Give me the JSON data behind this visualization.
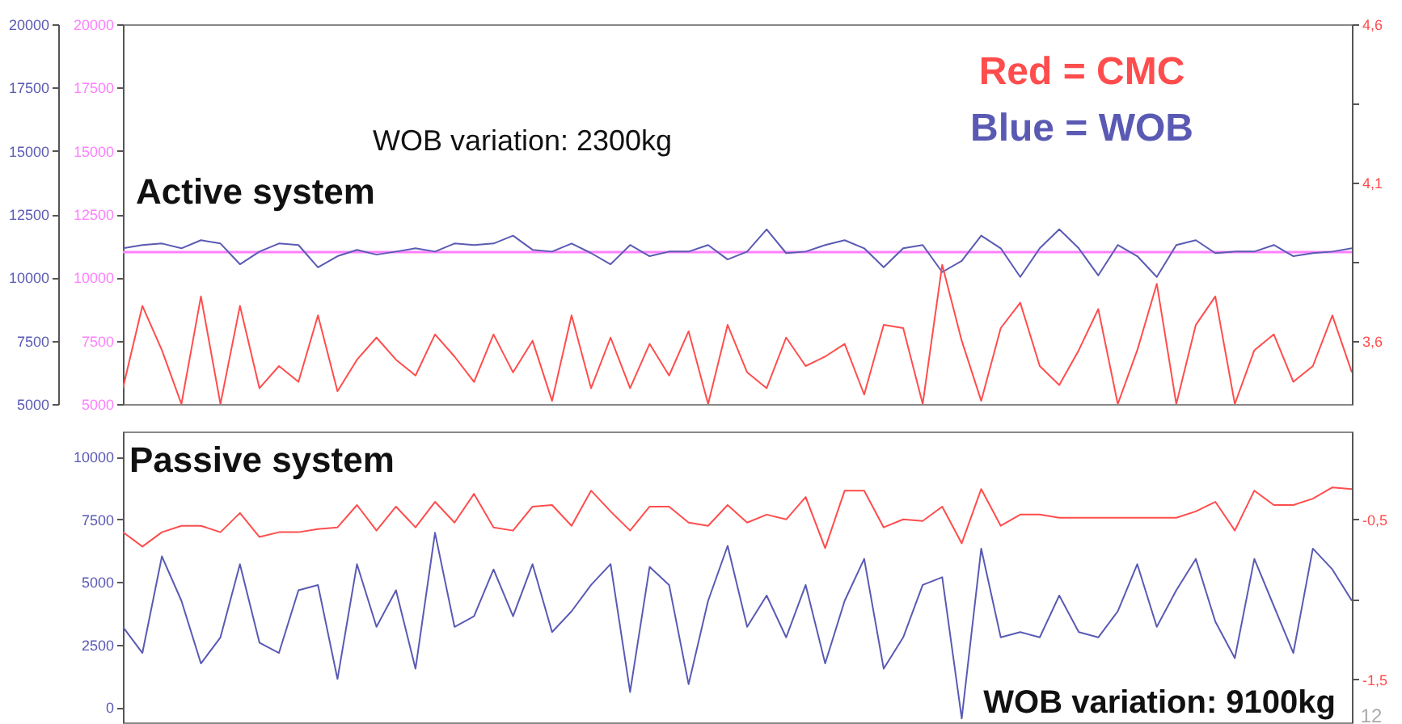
{
  "chart_data": [
    {
      "type": "line",
      "categories": [
        null,
        null,
        null,
        null,
        null,
        null,
        null,
        null,
        null,
        null,
        null,
        null,
        null,
        null,
        null,
        null,
        null,
        null,
        null,
        null,
        null,
        null,
        null,
        null,
        null,
        null,
        null,
        null,
        null,
        null,
        null,
        null,
        null,
        null,
        null,
        null,
        null,
        null,
        null,
        null,
        null,
        null,
        null,
        null,
        null,
        null,
        null,
        null,
        null,
        null,
        null,
        null,
        null,
        null,
        null,
        null,
        null,
        null,
        null,
        null,
        null,
        null,
        null,
        null
      ],
      "series": [
        {
          "color": "#5a5ab4",
          "values": [
            11150,
            11280,
            11340,
            11150,
            11470,
            11340,
            10520,
            11020,
            11340,
            11280,
            10400,
            10840,
            11090,
            10900,
            11020,
            11150,
            11020,
            11340,
            11280,
            11340,
            11650,
            11090,
            11020,
            11340,
            10960,
            10520,
            11280,
            10840,
            11020,
            11020,
            11280,
            10710,
            11020,
            11900,
            10960,
            11020,
            11280,
            11470,
            11150,
            10400,
            11150,
            11280,
            10210,
            10650,
            11650,
            11150,
            10020,
            11150,
            11900,
            11150,
            10080,
            11280,
            10840,
            10020,
            11280,
            11470,
            10960,
            11020,
            11020,
            11280,
            10840,
            10960,
            11020,
            11150
          ]
        },
        {
          "color": "#ff4d4d",
          "axis": "y3",
          "values": [
            3.45,
            3.71,
            3.57,
            3.4,
            3.74,
            3.4,
            3.71,
            3.45,
            3.52,
            3.47,
            3.68,
            3.44,
            3.54,
            3.61,
            3.54,
            3.49,
            3.62,
            3.55,
            3.47,
            3.62,
            3.5,
            3.6,
            3.41,
            3.68,
            3.45,
            3.61,
            3.45,
            3.59,
            3.49,
            3.63,
            3.4,
            3.65,
            3.5,
            3.45,
            3.61,
            3.52,
            3.55,
            3.59,
            3.43,
            3.65,
            3.64,
            3.4,
            3.84,
            3.6,
            3.41,
            3.64,
            3.72,
            3.52,
            3.46,
            3.57,
            3.7,
            3.4,
            3.57,
            3.78,
            3.4,
            3.65,
            3.74,
            3.4,
            3.57,
            3.62,
            3.47,
            3.52,
            3.68,
            3.5
          ]
        }
      ],
      "ylim": [
        5000,
        20000
      ],
      "yticks": [
        5000,
        7500,
        10000,
        12500,
        15000,
        17500,
        20000
      ],
      "y2lim": [
        5000,
        20000
      ],
      "y2ticks": [
        5000,
        7500,
        10000,
        12500,
        15000,
        17500,
        20000
      ],
      "y3lim": [
        3.4,
        4.6
      ],
      "y3ticks": [
        {
          "value": 4.6,
          "label": "4,6"
        },
        {
          "value": 4.35,
          "label": null
        },
        {
          "value": 4.1,
          "label": "4,1"
        },
        {
          "value": 3.85,
          "label": null
        },
        {
          "value": 3.6,
          "label": "3,6"
        }
      ],
      "ref_lines": [
        {
          "axis": "y2",
          "value": 11000,
          "color": "#ff80ff"
        }
      ],
      "annotations": [
        "WOB variation: 2300kg",
        "Active system",
        "Red = CMC",
        "Blue = WOB"
      ]
    },
    {
      "type": "line",
      "categories": [
        null,
        null,
        null,
        null,
        null,
        null,
        null,
        null,
        null,
        null,
        null,
        null,
        null,
        null,
        null,
        null,
        null,
        null,
        null,
        null,
        null,
        null,
        null,
        null,
        null,
        null,
        null,
        null,
        null,
        null,
        null,
        null,
        null,
        null,
        null,
        null,
        null,
        null,
        null,
        null,
        null,
        null,
        null,
        null,
        null,
        null,
        null,
        null,
        null,
        null,
        null,
        null,
        null,
        null,
        null,
        null,
        null,
        null,
        null,
        null,
        null,
        null,
        null,
        null
      ],
      "series": [
        {
          "color": "#ff4d4d",
          "axis": "y2",
          "values": [
            -0.58,
            -0.67,
            -0.58,
            -0.54,
            -0.54,
            -0.58,
            -0.46,
            -0.61,
            -0.58,
            -0.58,
            -0.56,
            -0.55,
            -0.41,
            -0.57,
            -0.42,
            -0.55,
            -0.39,
            -0.52,
            -0.34,
            -0.55,
            -0.57,
            -0.42,
            -0.41,
            -0.54,
            -0.32,
            -0.45,
            -0.57,
            -0.42,
            -0.42,
            -0.52,
            -0.54,
            -0.41,
            -0.52,
            -0.47,
            -0.5,
            -0.36,
            -0.68,
            -0.32,
            -0.32,
            -0.55,
            -0.5,
            -0.51,
            -0.42,
            -0.65,
            -0.31,
            -0.54,
            -0.47,
            -0.47,
            -0.49,
            -0.49,
            -0.49,
            -0.49,
            -0.49,
            -0.49,
            -0.49,
            -0.45,
            -0.39,
            -0.57,
            -0.32,
            -0.41,
            -0.41,
            -0.37,
            -0.3,
            -0.31
          ]
        },
        {
          "color": "#5a5ab4",
          "values": [
            3210,
            2170,
            6020,
            4250,
            1750,
            2790,
            5710,
            2580,
            2170,
            4670,
            4880,
            1130,
            5710,
            3210,
            4670,
            1540,
            6960,
            3210,
            3630,
            5500,
            3630,
            5710,
            3000,
            3830,
            4880,
            5710,
            610,
            5600,
            4880,
            920,
            4250,
            6440,
            3210,
            4460,
            2790,
            4880,
            1750,
            4250,
            5920,
            1540,
            2790,
            4880,
            5190,
            -440,
            6330,
            2790,
            3000,
            2790,
            4460,
            3000,
            2790,
            3830,
            5710,
            3210,
            4670,
            5920,
            3420,
            1960,
            5920,
            4040,
            2170,
            6330,
            5500,
            4250
          ]
        }
      ],
      "ylim": [
        -600,
        11000
      ],
      "yticks": [
        0,
        2500,
        5000,
        7500,
        10000
      ],
      "y2lim": [
        -1.77,
        0.05
      ],
      "y2ticks": [
        {
          "value": -0.5,
          "label": "-0,5"
        },
        {
          "value": -1,
          "label": null
        },
        {
          "value": -1.5,
          "label": "-1,5"
        }
      ],
      "annotations": [
        "Passive system",
        "WOB variation: 9100kg",
        "12"
      ]
    }
  ]
}
